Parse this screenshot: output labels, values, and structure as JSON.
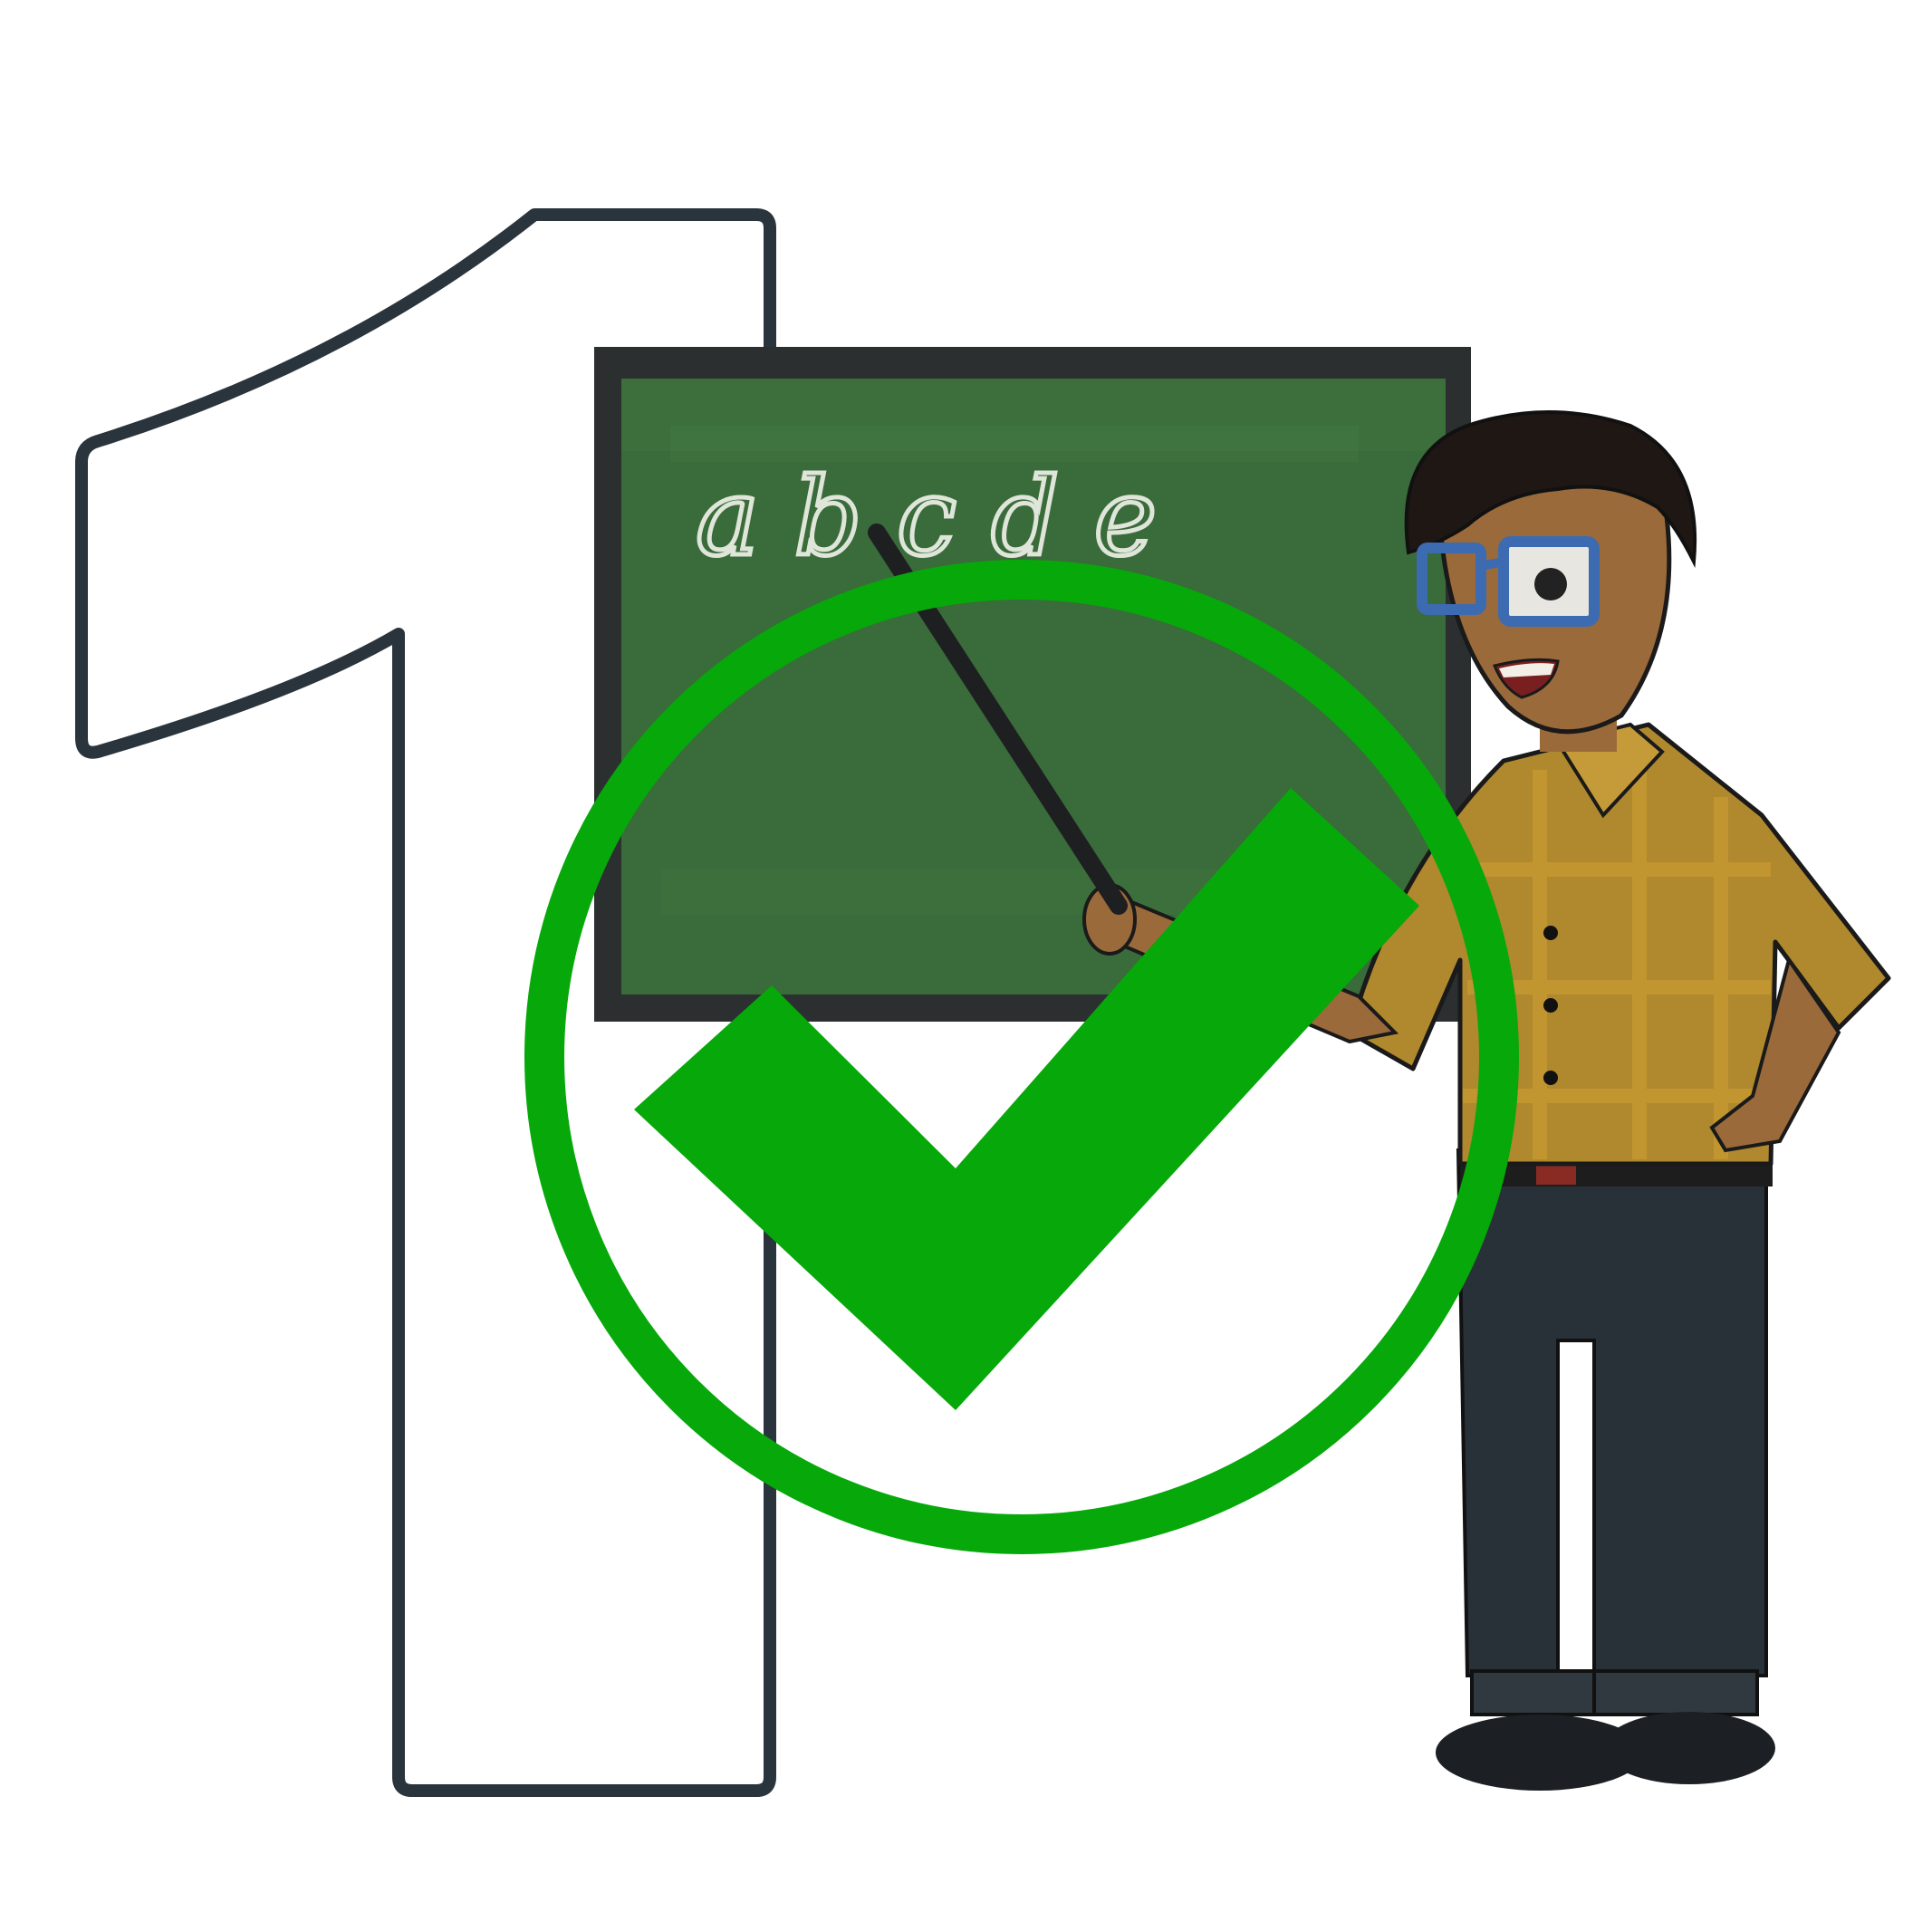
{
  "illustration": {
    "chalkboard_text": "abcde",
    "colors": {
      "numeral_outline": "#2a343c",
      "numeral_fill": "#ffffff",
      "board_frame": "#2b2f30",
      "board_surface": "#3a6b3a",
      "chalk": "#dfe6d9",
      "check": "#06a80a",
      "shirt": "#b0882d",
      "shirt_plaid": "#c99a2a",
      "skin": "#9a6a3a",
      "hair": "#1f1714",
      "glasses": "#3d6bb1",
      "pants": "#283038",
      "shoes": "#1c2024",
      "belt": "#1d1d1d",
      "pointer": "#1d1f21"
    },
    "icons": [
      "numeral-one-icon",
      "check-circle-icon",
      "chalkboard-icon",
      "teacher-figure-icon"
    ]
  }
}
